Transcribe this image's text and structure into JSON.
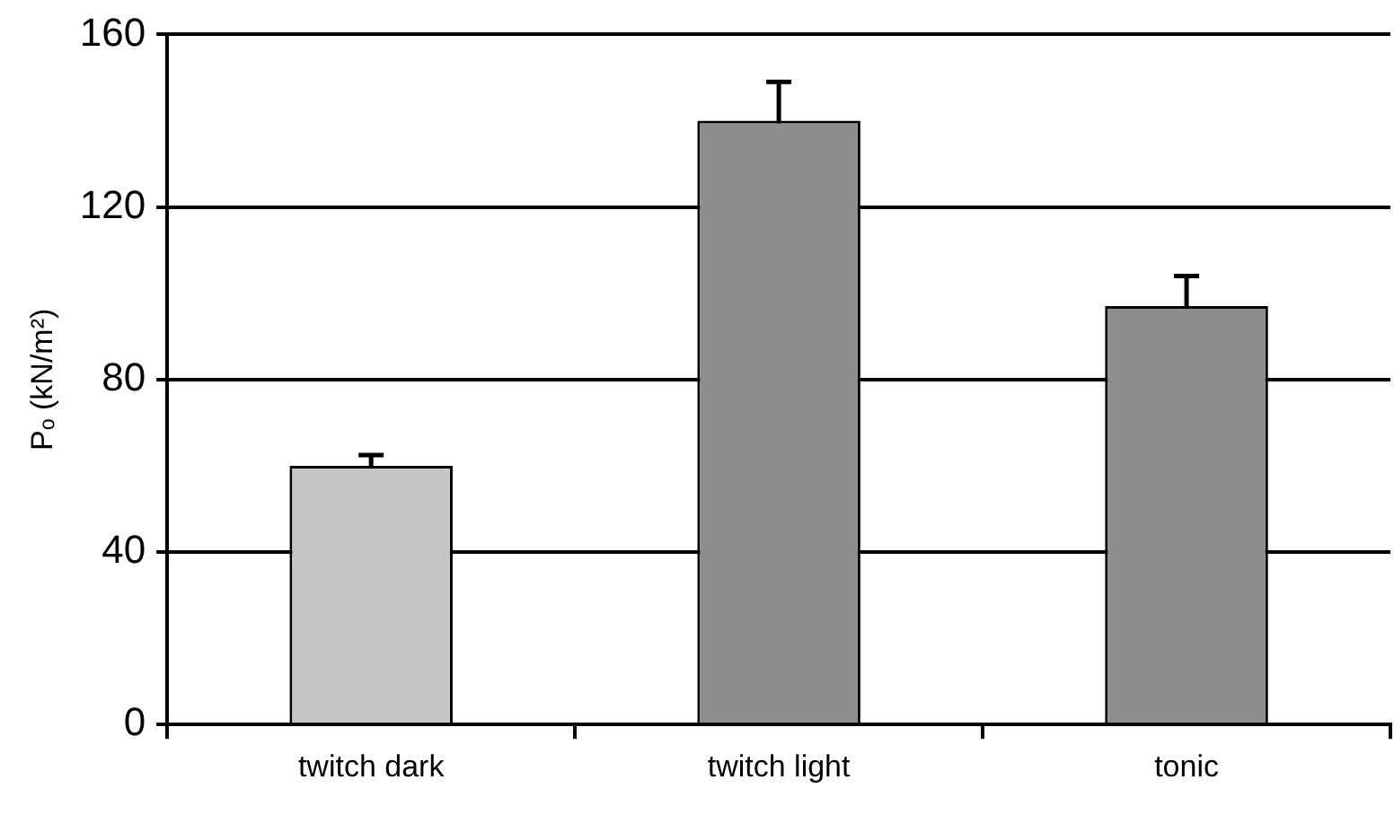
{
  "chart_data": {
    "type": "bar",
    "ylabel": "Pₒ (kN/m²)",
    "categories": [
      "twitch dark",
      "twitch light",
      "tonic"
    ],
    "values": [
      60,
      140,
      97
    ],
    "errors": [
      2.5,
      9,
      7
    ],
    "colors": [
      "#c6c6c6",
      "#8e8e8e",
      "#8e8e8e"
    ],
    "ylim": [
      0,
      160
    ],
    "yticks": [
      0,
      40,
      80,
      120,
      160
    ],
    "grid": "y"
  }
}
